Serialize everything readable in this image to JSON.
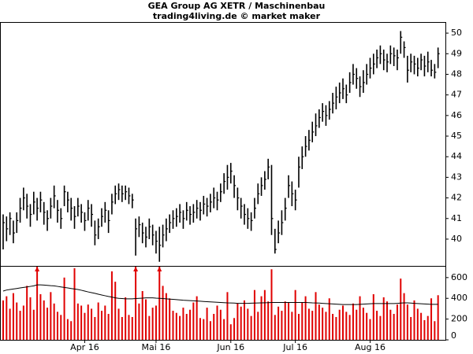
{
  "chart_data": [
    {
      "type": "hlc",
      "title": "GEA Group AG XETR / Maschinenbau",
      "subtitle": "trading4living.de © market maker",
      "color": "#000000",
      "ylim": [
        38.7,
        50.5
      ],
      "yticks": [
        40,
        41,
        42,
        43,
        44,
        45,
        46,
        47,
        48,
        49,
        50
      ],
      "high": [
        41.2,
        41.1,
        41.3,
        40.9,
        41.3,
        42.0,
        42.5,
        42.2,
        41.7,
        42.3,
        42.0,
        42.3,
        41.8,
        41.4,
        42.0,
        42.6,
        41.9,
        41.5,
        42.6,
        42.3,
        42.0,
        41.6,
        42.0,
        41.7,
        41.3,
        41.9,
        41.7,
        40.9,
        41.0,
        41.5,
        41.8,
        41.4,
        42.2,
        42.6,
        42.7,
        42.6,
        42.6,
        42.5,
        42.2,
        41.0,
        41.1,
        40.8,
        40.6,
        41.0,
        40.7,
        40.4,
        40.6,
        40.7,
        41.0,
        41.2,
        41.4,
        41.5,
        41.7,
        41.4,
        41.8,
        41.6,
        41.7,
        41.9,
        41.8,
        42.1,
        42.0,
        42.2,
        42.5,
        42.3,
        42.7,
        43.2,
        43.6,
        43.7,
        43.1,
        42.5,
        42.0,
        41.7,
        41.5,
        41.3,
        42.0,
        42.7,
        43.0,
        43.3,
        43.9,
        43.6,
        40.5,
        40.9,
        41.4,
        42.0,
        43.1,
        42.8,
        42.4,
        44.0,
        44.5,
        45.0,
        45.3,
        45.7,
        46.1,
        46.3,
        46.6,
        46.5,
        46.7,
        47.1,
        47.4,
        47.6,
        47.8,
        47.5,
        48.1,
        48.5,
        48.3,
        47.9,
        48.2,
        48.5,
        48.8,
        49.0,
        49.2,
        49.4,
        49.2,
        49.0,
        49.4,
        49.3,
        49.2,
        50.1,
        49.6,
        48.9,
        49.0,
        48.9,
        48.8,
        49.0,
        48.9,
        49.1,
        48.7,
        48.5,
        49.3
      ],
      "low": [
        39.5,
        39.9,
        40.2,
        39.8,
        40.3,
        40.8,
        41.4,
        41.0,
        40.6,
        41.2,
        40.9,
        41.3,
        40.7,
        40.4,
        41.0,
        41.5,
        40.8,
        40.5,
        41.6,
        41.3,
        40.9,
        40.5,
        41.1,
        40.8,
        40.4,
        40.9,
        40.6,
        39.7,
        40.0,
        40.6,
        40.8,
        40.3,
        41.2,
        41.7,
        41.9,
        41.8,
        41.9,
        41.7,
        41.5,
        39.2,
        40.1,
        39.8,
        39.6,
        40.0,
        39.7,
        39.3,
        38.9,
        39.6,
        39.9,
        40.3,
        40.5,
        40.6,
        40.8,
        40.5,
        40.9,
        40.7,
        40.8,
        41.0,
        40.9,
        41.2,
        41.1,
        41.3,
        41.5,
        41.4,
        41.8,
        42.2,
        42.4,
        42.7,
        42.0,
        41.4,
        41.0,
        40.7,
        40.5,
        40.4,
        41.0,
        41.7,
        42.1,
        42.4,
        42.9,
        40.2,
        39.3,
        39.8,
        40.2,
        40.9,
        42.0,
        41.6,
        41.4,
        42.5,
        43.4,
        44.0,
        44.3,
        44.7,
        45.0,
        45.4,
        45.7,
        45.5,
        45.8,
        46.1,
        46.3,
        46.6,
        46.8,
        46.6,
        47.1,
        47.5,
        47.3,
        46.9,
        47.1,
        47.5,
        47.8,
        48.0,
        48.3,
        48.5,
        48.2,
        48.1,
        48.5,
        48.4,
        48.2,
        49.0,
        48.8,
        47.6,
        48.1,
        48.0,
        47.9,
        48.2,
        47.9,
        48.1,
        47.9,
        47.8,
        48.3
      ],
      "close": [
        40.8,
        40.5,
        41.0,
        40.3,
        40.9,
        41.5,
        42.0,
        41.6,
        41.2,
        41.8,
        41.5,
        41.9,
        41.3,
        41.0,
        41.6,
        42.1,
        41.4,
        41.0,
        42.3,
        41.9,
        41.5,
        41.1,
        41.6,
        41.3,
        40.9,
        41.5,
        41.2,
        40.2,
        40.6,
        41.1,
        41.4,
        40.9,
        41.8,
        42.2,
        42.4,
        42.2,
        42.3,
        42.1,
        41.9,
        40.5,
        40.7,
        40.3,
        40.1,
        40.6,
        40.2,
        39.9,
        39.7,
        40.2,
        40.5,
        40.8,
        41.0,
        41.1,
        41.3,
        41.0,
        41.4,
        41.2,
        41.3,
        41.5,
        41.4,
        41.7,
        41.6,
        41.8,
        42.0,
        41.9,
        42.3,
        42.8,
        43.0,
        43.3,
        42.6,
        42.0,
        41.6,
        41.2,
        41.0,
        40.9,
        41.5,
        42.2,
        42.6,
        42.9,
        43.5,
        41.0,
        39.5,
        40.3,
        40.8,
        41.5,
        42.6,
        42.2,
        41.9,
        43.5,
        44.0,
        44.5,
        44.8,
        45.2,
        45.5,
        45.9,
        46.2,
        46.0,
        46.3,
        46.6,
        46.9,
        47.1,
        47.3,
        47.0,
        47.6,
        48.0,
        47.8,
        47.4,
        47.6,
        48.0,
        48.3,
        48.5,
        48.8,
        49.0,
        48.7,
        48.6,
        49.0,
        48.9,
        48.8,
        49.8,
        49.3,
        48.2,
        48.6,
        48.5,
        48.3,
        48.7,
        48.4,
        48.6,
        48.2,
        48.1,
        49.0
      ]
    },
    {
      "type": "bar",
      "color": "#e00000",
      "average_color": "#000000",
      "ylim": [
        0,
        705
      ],
      "yticks": [
        0,
        200,
        400,
        600
      ],
      "categories": [
        null,
        null,
        null,
        null,
        null,
        null,
        null,
        null,
        null,
        null,
        null,
        null,
        null,
        null,
        null,
        null,
        null,
        null,
        null,
        null,
        null,
        null,
        null,
        null,
        "Apr 16",
        null,
        null,
        null,
        null,
        null,
        null,
        null,
        null,
        null,
        null,
        null,
        null,
        null,
        null,
        null,
        null,
        null,
        null,
        null,
        null,
        "Mai 16",
        null,
        null,
        null,
        null,
        null,
        null,
        null,
        null,
        null,
        null,
        null,
        null,
        null,
        null,
        null,
        null,
        null,
        null,
        null,
        null,
        null,
        "Jun 16",
        null,
        null,
        null,
        null,
        null,
        null,
        null,
        null,
        null,
        null,
        null,
        null,
        null,
        null,
        null,
        null,
        null,
        null,
        "Jul 16",
        null,
        null,
        null,
        null,
        null,
        null,
        null,
        null,
        null,
        null,
        null,
        null,
        null,
        null,
        null,
        null,
        null,
        null,
        null,
        null,
        null,
        "Aug 16",
        null,
        null,
        null,
        null,
        null,
        null,
        null,
        null,
        null,
        null,
        null,
        null,
        null,
        null,
        null,
        null,
        null,
        null,
        null,
        null
      ],
      "values": [
        380,
        420,
        300,
        450,
        360,
        280,
        330,
        520,
        410,
        290,
        760,
        440,
        380,
        310,
        460,
        350,
        270,
        240,
        600,
        200,
        180,
        690,
        350,
        330,
        260,
        340,
        300,
        220,
        360,
        280,
        330,
        250,
        660,
        560,
        300,
        220,
        410,
        240,
        220,
        780,
        350,
        470,
        390,
        230,
        310,
        330,
        800,
        520,
        450,
        400,
        280,
        260,
        230,
        310,
        250,
        290,
        360,
        420,
        210,
        200,
        310,
        180,
        250,
        330,
        290,
        200,
        460,
        150,
        210,
        350,
        320,
        380,
        300,
        230,
        480,
        270,
        420,
        480,
        370,
        680,
        240,
        320,
        280,
        370,
        360,
        270,
        480,
        250,
        360,
        420,
        300,
        280,
        460,
        340,
        310,
        270,
        400,
        250,
        220,
        290,
        330,
        270,
        240,
        350,
        290,
        420,
        310,
        260,
        200,
        440,
        280,
        230,
        410,
        370,
        290,
        250,
        340,
        590,
        450,
        340,
        220,
        380,
        300,
        260,
        190,
        230,
        400,
        180,
        430
      ],
      "average": [
        470,
        480,
        485,
        490,
        495,
        500,
        505,
        510,
        515,
        520,
        530,
        530,
        528,
        525,
        522,
        520,
        515,
        510,
        505,
        500,
        495,
        490,
        485,
        478,
        470,
        462,
        455,
        448,
        440,
        432,
        425,
        418,
        412,
        405,
        400,
        398,
        395,
        395,
        395,
        398,
        400,
        402,
        405,
        405,
        405,
        402,
        400,
        398,
        395,
        392,
        390,
        388,
        385,
        382,
        380,
        378,
        376,
        374,
        372,
        370,
        368,
        366,
        364,
        362,
        360,
        358,
        356,
        355,
        354,
        352,
        352,
        352,
        352,
        353,
        354,
        355,
        356,
        357,
        358,
        360,
        360,
        360,
        360,
        360,
        360,
        360,
        360,
        360,
        360,
        360,
        358,
        356,
        355,
        354,
        352,
        350,
        348,
        346,
        344,
        342,
        340,
        340,
        340,
        340,
        340,
        342,
        344,
        346,
        348,
        350,
        350,
        350,
        350,
        350,
        350,
        350,
        352,
        354,
        356,
        356,
        354,
        352,
        350,
        348,
        346,
        344,
        342,
        342,
        342
      ]
    }
  ]
}
